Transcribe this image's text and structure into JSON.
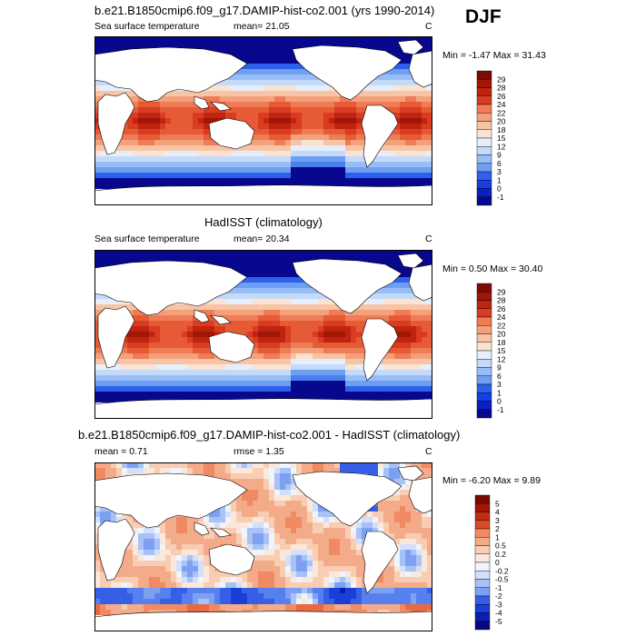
{
  "season": "DJF",
  "colors": {
    "abs_scale": [
      "#08088f",
      "#0a1fc4",
      "#1540e0",
      "#2e60ec",
      "#4a80f0",
      "#6e9ff3",
      "#98bdf6",
      "#c4daf9",
      "#e6eefb",
      "#fbe3d2",
      "#f8c4a6",
      "#f4a17b",
      "#ef7c55",
      "#e65a35",
      "#d93c20",
      "#c0240f",
      "#a01608",
      "#7e0b03"
    ],
    "diff_scale": [
      "#08087f",
      "#0a1fb8",
      "#1a3ed8",
      "#3560e6",
      "#5580ee",
      "#7ea0f3",
      "#a8c1f7",
      "#d2e0fa",
      "#f0f4fc",
      "#fbe8dc",
      "#f8cdb3",
      "#f4ab89",
      "#ef8a62",
      "#e76a42",
      "#d94a27",
      "#c32c12",
      "#a01607",
      "#7a0904"
    ]
  },
  "panels": [
    {
      "title": "b.e21.B1850cmip6.f09_g17.DAMIP-hist-co2.001 (yrs 1990-2014)",
      "left_label": "Sea surface temperature",
      "mean_label": "mean=  21.05",
      "unit": "C",
      "minmax": "Min =  -1.47 Max =  31.43",
      "colorbar_labels": [
        "29",
        "28",
        "26",
        "24",
        "22",
        "20",
        "18",
        "15",
        "12",
        "9",
        "6",
        "3",
        "1",
        "0",
        "-1"
      ],
      "pattern": "abs"
    },
    {
      "title": "HadISST (climatology)",
      "left_label": "Sea surface temperature",
      "mean_label": "mean=  20.34",
      "unit": "C",
      "minmax": "Min =   0.50 Max =  30.40",
      "colorbar_labels": [
        "29",
        "28",
        "26",
        "24",
        "22",
        "20",
        "18",
        "15",
        "12",
        "9",
        "6",
        "3",
        "1",
        "0",
        "-1"
      ],
      "pattern": "abs"
    },
    {
      "title": "b.e21.B1850cmip6.f09_g17.DAMIP-hist-co2.001 - HadISST (climatology)",
      "left_label": "mean =   0.71",
      "mean_label": "rmse =   1.35",
      "unit": "C",
      "minmax": "Min =  -6.20 Max =   9.89",
      "colorbar_labels": [
        "5",
        "4",
        "3",
        "2",
        "1",
        "0.5",
        "0.2",
        "0",
        "-0.2",
        "-0.5",
        "-1",
        "-2",
        "-3",
        "-4",
        "-5"
      ],
      "pattern": "diff"
    }
  ]
}
